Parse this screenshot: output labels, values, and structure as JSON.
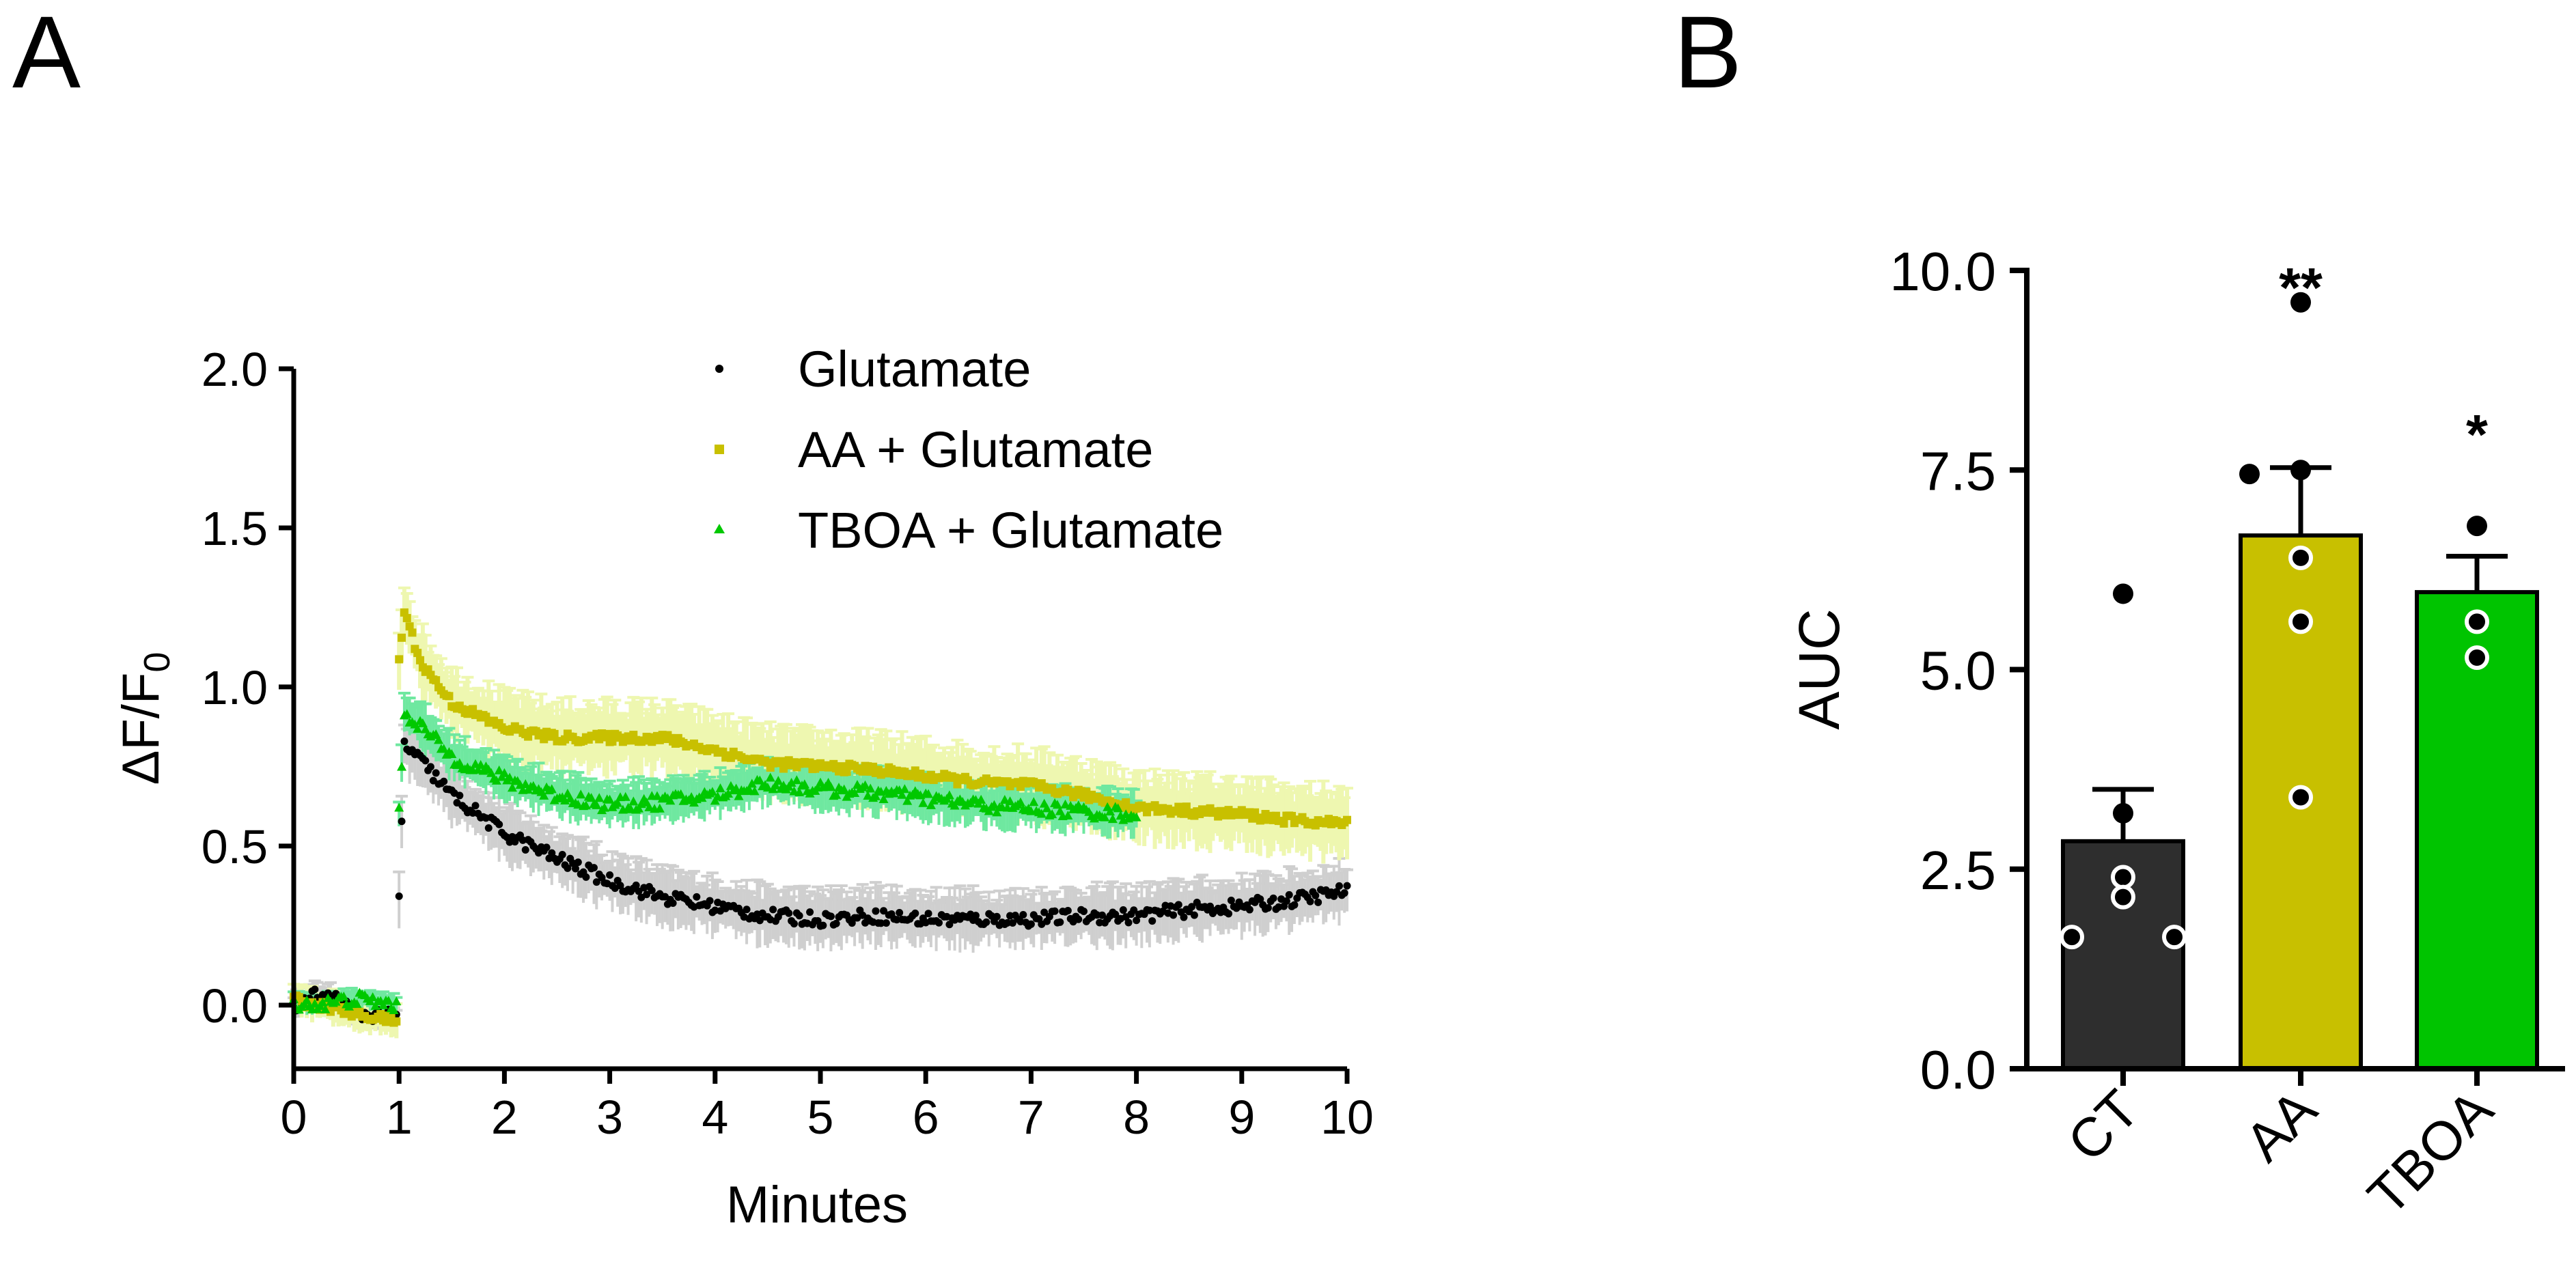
{
  "panels": {
    "a_label": "A",
    "b_label": "B"
  },
  "colors": {
    "glutamate": "#000000",
    "aa": "#c8c000",
    "tboa": "#00c800",
    "glutamate_err": "#cfcfcf",
    "aa_err": "#eef7b0",
    "tboa_err": "#6fe8a0",
    "ct_bar": "#2e2e2e",
    "aa_bar": "#c8c000",
    "tboa_bar": "#00c400"
  },
  "chart_data": [
    {
      "type": "scatter",
      "panel": "A",
      "xlabel": "Minutes",
      "ylabel": "ΔF/F",
      "ylabel_sub": "0",
      "xlim": [
        0,
        10
      ],
      "ylim": [
        -0.2,
        2.0
      ],
      "xticks": [
        "0",
        "1",
        "2",
        "3",
        "4",
        "5",
        "6",
        "7",
        "8",
        "9",
        "10"
      ],
      "yticks": [
        "0.0",
        "0.5",
        "1.0",
        "1.5",
        "2.0"
      ],
      "legend": [
        "Glutamate",
        "AA + Glutamate",
        "TBOA + Glutamate"
      ],
      "legend_position": "top-right",
      "series": [
        {
          "name": "Glutamate",
          "marker": "circle",
          "x": [
            0,
            0.2,
            0.4,
            0.6,
            0.8,
            0.98,
            1.0,
            1.05,
            1.2,
            1.5,
            2.0,
            2.5,
            3.0,
            3.5,
            4.0,
            4.5,
            5.0,
            5.5,
            6.0,
            6.5,
            7.0,
            7.5,
            8.0,
            8.5,
            9.0,
            9.5,
            10.0
          ],
          "y": [
            0.0,
            0.03,
            0.02,
            -0.03,
            -0.03,
            -0.04,
            0.33,
            0.82,
            0.77,
            0.66,
            0.54,
            0.46,
            0.39,
            0.34,
            0.31,
            0.28,
            0.27,
            0.28,
            0.27,
            0.27,
            0.27,
            0.28,
            0.28,
            0.3,
            0.31,
            0.33,
            0.36
          ]
        },
        {
          "name": "AA + Glutamate",
          "marker": "square",
          "x": [
            0,
            0.2,
            0.4,
            0.6,
            0.8,
            0.98,
            1.0,
            1.05,
            1.2,
            1.5,
            2.0,
            2.5,
            3.0,
            3.5,
            4.0,
            4.5,
            5.0,
            5.5,
            6.0,
            6.5,
            7.0,
            7.5,
            8.0,
            8.5,
            9.0,
            9.5,
            10.0
          ],
          "y": [
            0.02,
            0.0,
            -0.01,
            -0.03,
            -0.04,
            -0.05,
            1.08,
            1.24,
            1.08,
            0.95,
            0.87,
            0.84,
            0.84,
            0.84,
            0.8,
            0.76,
            0.75,
            0.74,
            0.72,
            0.7,
            0.69,
            0.66,
            0.62,
            0.61,
            0.6,
            0.58,
            0.57
          ]
        },
        {
          "name": "TBOA + Glutamate",
          "marker": "triangle",
          "x": [
            0,
            0.2,
            0.4,
            0.6,
            0.8,
            0.98,
            1.0,
            1.05,
            1.2,
            1.5,
            2.0,
            2.5,
            3.0,
            3.5,
            4.0,
            4.5,
            5.0,
            5.5,
            6.0,
            6.5,
            7.0,
            7.5,
            8.0
          ],
          "y": [
            0.01,
            0.0,
            0.01,
            0.02,
            0.01,
            0.0,
            0.6,
            0.92,
            0.88,
            0.78,
            0.71,
            0.66,
            0.63,
            0.64,
            0.66,
            0.7,
            0.68,
            0.67,
            0.65,
            0.63,
            0.62,
            0.61,
            0.6
          ]
        }
      ]
    },
    {
      "type": "bar",
      "panel": "B",
      "ylabel": "AUC",
      "ylim": [
        0,
        10
      ],
      "yticks": [
        "0.0",
        "2.5",
        "5.0",
        "7.5",
        "10.0"
      ],
      "categories": [
        "CT",
        "AA",
        "TBOA"
      ],
      "values": [
        2.85,
        6.68,
        5.97
      ],
      "sem": [
        0.65,
        0.85,
        0.45
      ],
      "significance": [
        "",
        "**",
        "*"
      ],
      "points": [
        [
          5.95,
          3.2,
          2.4,
          2.15,
          1.65,
          1.65
        ],
        [
          9.6,
          7.45,
          7.5,
          6.4,
          5.6,
          3.4
        ],
        [
          6.8,
          5.6,
          5.15
        ]
      ]
    }
  ]
}
